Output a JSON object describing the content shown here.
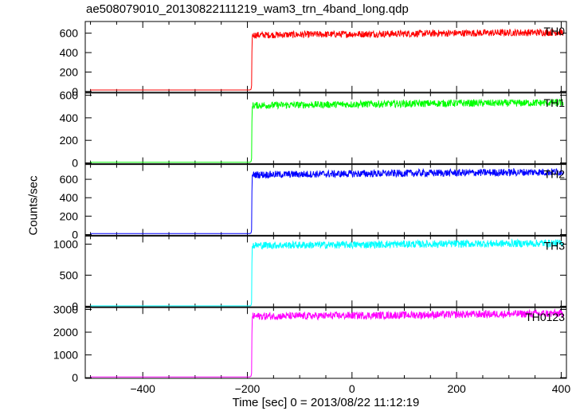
{
  "chart_data": {
    "type": "line",
    "title": "ae508079010_20130822111219_wam3_trn_4band_long.qdp",
    "xlabel": "Time [sec] 0 = 2013/08/22 11:12:19",
    "ylabel": "Counts/sec",
    "xlim": [
      -510,
      410
    ],
    "xticks": [
      -400,
      -200,
      0,
      200,
      400
    ],
    "grid": false,
    "panels": [
      {
        "name": "TH0",
        "color": "#ff0000",
        "ylim": [
          -8,
          720
        ],
        "yticks": [
          0,
          200,
          400,
          600
        ],
        "x": [
          -500,
          -196,
          -193,
          -192,
          -191,
          -190,
          -100,
          0,
          100,
          200,
          300,
          400
        ],
        "y": [
          15,
          15,
          20,
          60,
          560,
          580,
          585,
          590,
          595,
          600,
          605,
          608
        ]
      },
      {
        "name": "TH1",
        "color": "#00ff00",
        "ylim": [
          -8,
          620
        ],
        "yticks": [
          0,
          200,
          400,
          600
        ],
        "x": [
          -500,
          -196,
          -193,
          -192,
          -191,
          -190,
          -100,
          0,
          100,
          200,
          300,
          400
        ],
        "y": [
          5,
          5,
          10,
          40,
          500,
          510,
          515,
          520,
          525,
          530,
          530,
          535
        ]
      },
      {
        "name": "TH2",
        "color": "#0000ff",
        "ylim": [
          -8,
          760
        ],
        "yticks": [
          0,
          200,
          400,
          600
        ],
        "x": [
          -500,
          -196,
          -193,
          -192,
          -191,
          -190,
          -100,
          0,
          100,
          200,
          300,
          400
        ],
        "y": [
          10,
          10,
          15,
          50,
          640,
          650,
          655,
          660,
          665,
          670,
          675,
          680
        ]
      },
      {
        "name": "TH3",
        "color": "#00ffff",
        "ylim": [
          -10,
          1130
        ],
        "yticks": [
          0,
          500,
          1000
        ],
        "x": [
          -500,
          -196,
          -193,
          -192,
          -191,
          -190,
          -100,
          0,
          100,
          200,
          300,
          400
        ],
        "y": [
          5,
          5,
          10,
          60,
          960,
          980,
          985,
          990,
          1000,
          1005,
          1010,
          1015
        ]
      },
      {
        "name": "TH0123",
        "color": "#ff00ff",
        "ylim": [
          -30,
          3080
        ],
        "yticks": [
          0,
          1000,
          2000,
          3000
        ],
        "x": [
          -500,
          -196,
          -193,
          -192,
          -191,
          -190,
          -100,
          0,
          100,
          200,
          300,
          400
        ],
        "y": [
          30,
          30,
          60,
          200,
          2650,
          2700,
          2710,
          2730,
          2750,
          2780,
          2800,
          2820
        ]
      }
    ]
  }
}
